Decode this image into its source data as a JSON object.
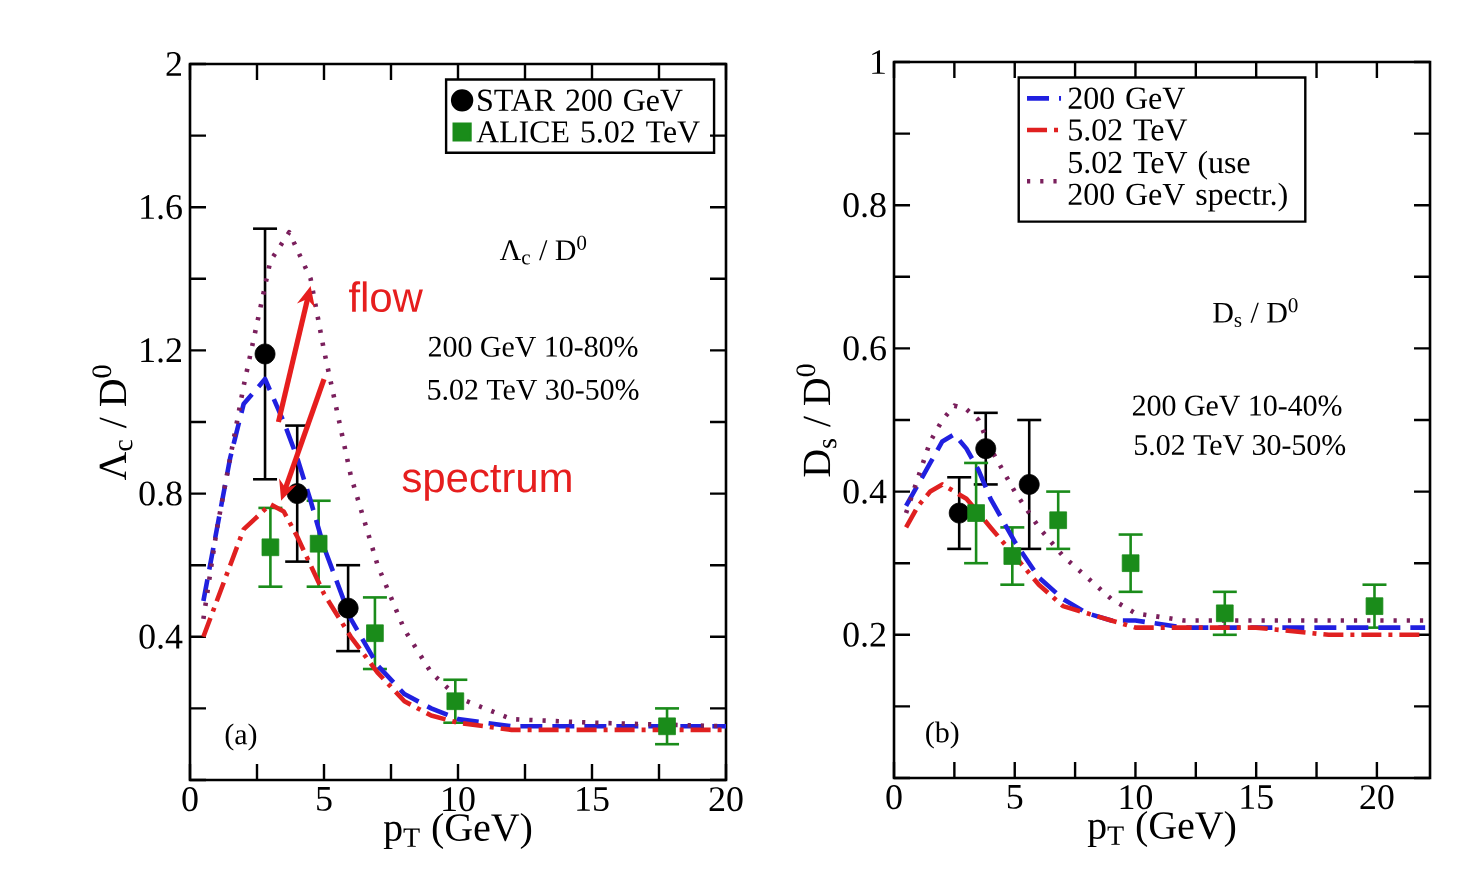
{
  "chart_data": [
    {
      "type": "scatter",
      "xlabel": "p$_{T}$ (GeV)",
      "ylabel": "Λ$_{c}$ / D$^{0}$",
      "xlim": [
        0,
        20
      ],
      "ylim": [
        0,
        2
      ],
      "xticks": [
        0,
        {
          "value": 2.5,
          "label": null
        },
        5,
        {
          "value": 7.5,
          "label": null
        },
        10,
        {
          "value": 12.5,
          "label": null
        },
        15,
        {
          "value": 17.5,
          "label": null
        },
        20
      ],
      "yticks": [
        {
          "value": 0,
          "label": null
        },
        {
          "value": 0.2,
          "label": null
        },
        0.4,
        {
          "value": 0.6,
          "label": null
        },
        0.8,
        {
          "value": 1.0,
          "label": null
        },
        1.2,
        {
          "value": 1.4,
          "label": null
        },
        1.6,
        {
          "value": 1.8,
          "label": null
        },
        2
      ],
      "legend": "top right",
      "series": [
        {
          "name": "STAR 200 GeV",
          "color": "#000000",
          "marker": "circle",
          "x": [
            2.8,
            4.0,
            5.9
          ],
          "values": [
            1.19,
            0.8,
            0.48
          ],
          "errors": [
            0.35,
            0.19,
            0.12
          ]
        },
        {
          "name": "ALICE 5.02 TeV",
          "color": "#1a8c1a",
          "marker": "square",
          "x": [
            3.0,
            4.8,
            6.9,
            9.9,
            17.8
          ],
          "values": [
            0.65,
            0.66,
            0.41,
            0.22,
            0.15
          ],
          "errors": [
            0.11,
            0.12,
            0.1,
            0.06,
            0.05
          ]
        },
        {
          "type": "line",
          "color": "#2020e0",
          "marker": "none",
          "line_style": "dashed",
          "x": [
            0.5,
            1,
            1.5,
            2,
            2.8,
            3.5,
            4,
            4.5,
            5,
            6,
            7,
            8,
            9,
            10,
            12,
            15,
            20
          ],
          "values": [
            0.5,
            0.7,
            0.9,
            1.05,
            1.12,
            1.0,
            0.9,
            0.78,
            0.65,
            0.45,
            0.32,
            0.24,
            0.2,
            0.17,
            0.15,
            0.15,
            0.15
          ]
        },
        {
          "type": "line",
          "color": "#e02020",
          "marker": "none",
          "line_style": "dashdot",
          "x": [
            0.5,
            1,
            1.5,
            2,
            3,
            3.5,
            4,
            4.5,
            5,
            6,
            7,
            8,
            9,
            10,
            12,
            15,
            20
          ],
          "values": [
            0.4,
            0.5,
            0.6,
            0.7,
            0.77,
            0.75,
            0.68,
            0.6,
            0.52,
            0.4,
            0.3,
            0.22,
            0.18,
            0.16,
            0.14,
            0.14,
            0.14
          ]
        },
        {
          "type": "line",
          "color": "#7a1f5c",
          "marker": "none",
          "line_style": "dotted",
          "x": [
            0.5,
            1,
            2,
            3,
            3.7,
            4.5,
            5,
            6,
            7,
            8,
            9,
            10,
            12,
            15,
            20
          ],
          "values": [
            0.45,
            0.7,
            1.1,
            1.45,
            1.53,
            1.4,
            1.2,
            0.85,
            0.6,
            0.42,
            0.3,
            0.23,
            0.17,
            0.16,
            0.15
          ]
        }
      ],
      "annotations": [
        "Λ$_{c}$ / D$^{0}$",
        "200 GeV 10-80%",
        "5.02 TeV 30-50%",
        {
          "text": "flow",
          "x": 4.5,
          "y": 1.38
        },
        {
          "text": "spectrum",
          "x": 3.4,
          "y": 0.78
        },
        "(a)"
      ]
    },
    {
      "type": "scatter",
      "xlabel": "p$_{T}$ (GeV)",
      "ylabel": "D$_{s}$ / D$^{0}$",
      "xlim": [
        0,
        22.2
      ],
      "ylim": [
        0,
        1
      ],
      "xticks": [
        0,
        {
          "value": 2.5,
          "label": null
        },
        5,
        {
          "value": 7.5,
          "label": null
        },
        10,
        {
          "value": 12.5,
          "label": null
        },
        15,
        {
          "value": 17.5,
          "label": null
        },
        20
      ],
      "yticks": [
        {
          "value": 0,
          "label": null
        },
        {
          "value": 0.1,
          "label": null
        },
        0.2,
        {
          "value": 0.3,
          "label": null
        },
        0.4,
        {
          "value": 0.5,
          "label": null
        },
        0.6,
        {
          "value": 0.7,
          "label": null
        },
        0.8,
        {
          "value": 0.9,
          "label": null
        },
        1
      ],
      "legend": "top",
      "series": [
        {
          "color": "#000000",
          "marker": "circle",
          "x": [
            2.7,
            3.8,
            5.6
          ],
          "values": [
            0.37,
            0.46,
            0.41
          ],
          "errors": [
            0.05,
            0.05,
            0.09
          ]
        },
        {
          "color": "#1a8c1a",
          "marker": "square",
          "x": [
            3.4,
            4.9,
            6.8,
            9.8,
            13.7,
            19.9
          ],
          "values": [
            0.37,
            0.31,
            0.36,
            0.3,
            0.23,
            0.24
          ],
          "errors": [
            0.07,
            0.04,
            0.04,
            0.04,
            0.03,
            0.03
          ]
        },
        {
          "type": "line",
          "name": "200 GeV",
          "color": "#2020e0",
          "marker": "none",
          "line_style": "dashed",
          "x": [
            0.5,
            1,
            1.5,
            2,
            2.5,
            3,
            3.5,
            4,
            5,
            6,
            7,
            8,
            9,
            10,
            12,
            15,
            20,
            22
          ],
          "values": [
            0.38,
            0.41,
            0.44,
            0.47,
            0.48,
            0.46,
            0.43,
            0.39,
            0.33,
            0.28,
            0.25,
            0.23,
            0.22,
            0.22,
            0.21,
            0.21,
            0.21,
            0.21
          ]
        },
        {
          "type": "line",
          "name": "5.02 TeV",
          "color": "#e02020",
          "marker": "none",
          "line_style": "dashdot",
          "x": [
            0.5,
            1,
            1.5,
            2,
            2.5,
            3,
            4,
            5,
            6,
            7,
            8,
            9,
            10,
            12,
            15,
            18,
            22
          ],
          "values": [
            0.35,
            0.38,
            0.4,
            0.41,
            0.4,
            0.39,
            0.35,
            0.31,
            0.27,
            0.24,
            0.23,
            0.22,
            0.21,
            0.21,
            0.21,
            0.2,
            0.2
          ]
        },
        {
          "type": "line",
          "name": "5.02 TeV (use 200 GeV spectr.)",
          "color": "#7a1f5c",
          "marker": "none",
          "line_style": "dotted",
          "x": [
            0.5,
            1,
            1.5,
            2,
            2.5,
            3,
            3.5,
            4,
            5,
            6,
            7,
            8,
            9,
            10,
            12,
            15,
            20,
            22
          ],
          "values": [
            0.37,
            0.42,
            0.47,
            0.5,
            0.52,
            0.515,
            0.5,
            0.46,
            0.4,
            0.35,
            0.31,
            0.28,
            0.25,
            0.23,
            0.22,
            0.22,
            0.22,
            0.22
          ]
        }
      ],
      "annotations": [
        "D$_{s}$ / D$^{0}$",
        "200 GeV 10-40%",
        "5.02 TeV 30-50%",
        "(b)"
      ]
    }
  ]
}
